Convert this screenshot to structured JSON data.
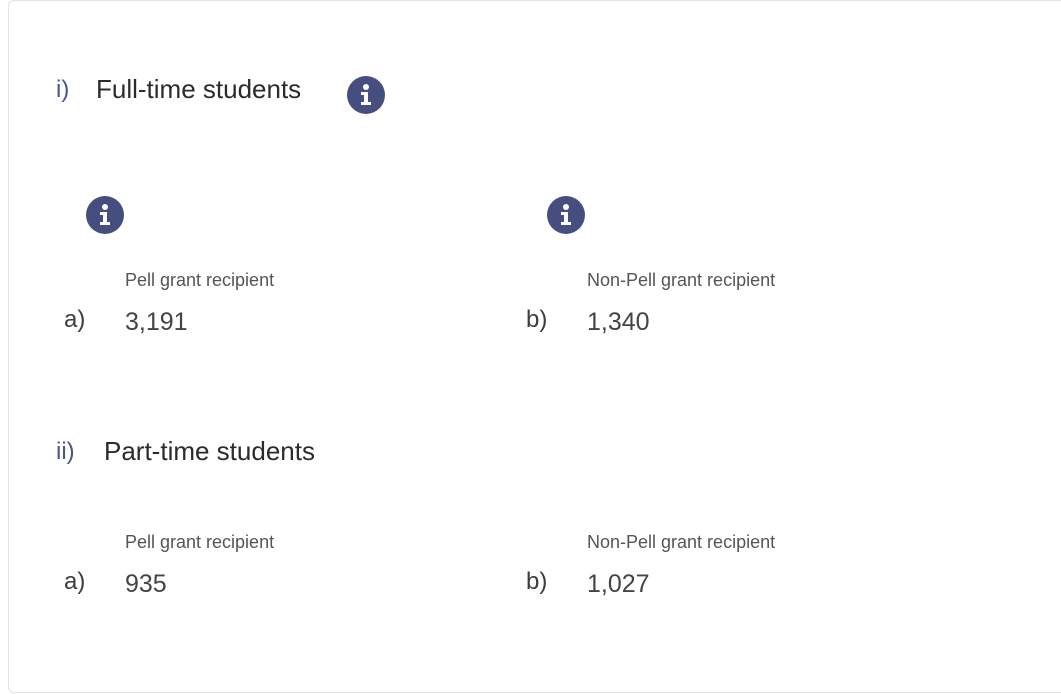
{
  "sections": [
    {
      "marker": "i)",
      "title": "Full-time students",
      "items": [
        {
          "marker": "a)",
          "label": "Pell grant recipient",
          "value": "3,191"
        },
        {
          "marker": "b)",
          "label": "Non-Pell grant recipient",
          "value": "1,340"
        }
      ]
    },
    {
      "marker": "ii)",
      "title": "Part-time students",
      "items": [
        {
          "marker": "a)",
          "label": "Pell grant recipient",
          "value": "935"
        },
        {
          "marker": "b)",
          "label": "Non-Pell grant recipient",
          "value": "1,027"
        }
      ]
    }
  ]
}
